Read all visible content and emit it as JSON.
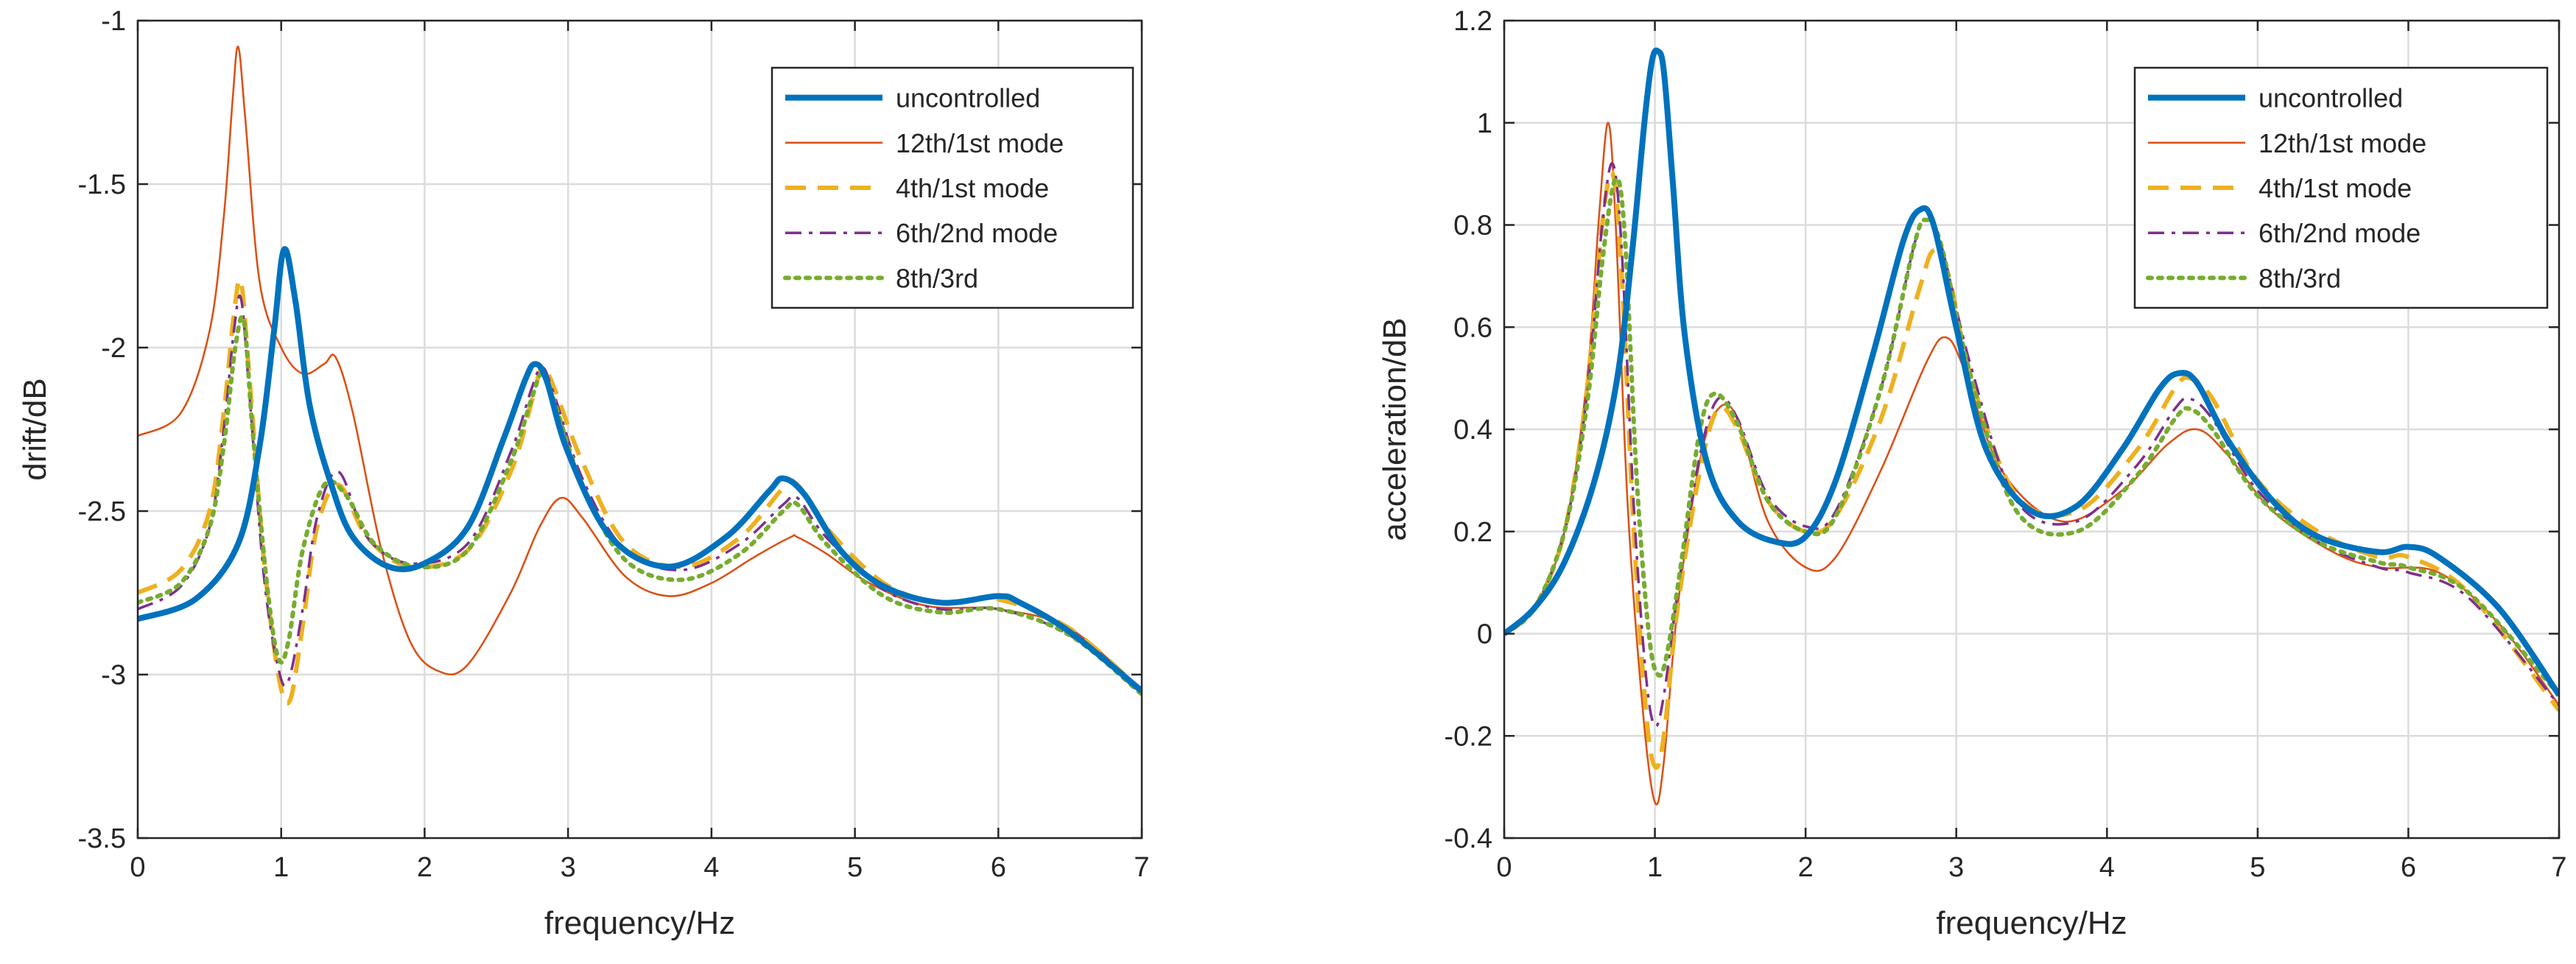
{
  "colors": {
    "uncontrolled": "#0072BD",
    "mode12": "#D95319",
    "mode4": "#EDB120",
    "mode6": "#7E2F8E",
    "mode8": "#77AC30",
    "axis": "#262626",
    "grid": "#DCDCDC"
  },
  "chart_data": [
    {
      "type": "line",
      "title": "",
      "xlabel": "frequency/Hz",
      "ylabel": "drift/dB",
      "xlim": [
        0,
        7
      ],
      "ylim": [
        -3.5,
        -1
      ],
      "xticks": [
        0,
        1,
        2,
        3,
        4,
        5,
        6,
        7
      ],
      "yticks": [
        -3.5,
        -3,
        -2.5,
        -2,
        -1.5,
        -1
      ],
      "xtick_labels": [
        "0",
        "1",
        "2",
        "3",
        "4",
        "5",
        "6",
        "7"
      ],
      "ytick_labels": [
        "-3.5",
        "-3",
        "-2.5",
        "-2",
        "-1.5",
        "-1"
      ],
      "grid": true,
      "legend_position": "top-right",
      "series": [
        {
          "name": "uncontrolled",
          "style": "solid-thick",
          "color_key": "uncontrolled",
          "x": [
            0,
            0.4,
            0.7,
            0.85,
            0.95,
            1.02,
            1.1,
            1.2,
            1.35,
            1.5,
            1.75,
            2.0,
            2.3,
            2.55,
            2.7,
            2.77,
            2.85,
            3.0,
            3.3,
            3.7,
            4.1,
            4.4,
            4.5,
            4.65,
            4.9,
            5.2,
            5.6,
            6.0,
            6.15,
            6.5,
            7.0
          ],
          "y": [
            -2.83,
            -2.77,
            -2.6,
            -2.3,
            -1.95,
            -1.7,
            -1.86,
            -2.18,
            -2.42,
            -2.58,
            -2.67,
            -2.66,
            -2.55,
            -2.28,
            -2.1,
            -2.05,
            -2.1,
            -2.32,
            -2.58,
            -2.67,
            -2.58,
            -2.44,
            -2.4,
            -2.45,
            -2.62,
            -2.73,
            -2.78,
            -2.76,
            -2.78,
            -2.87,
            -3.05
          ]
        },
        {
          "name": "12th/1st mode",
          "style": "solid-thin",
          "color_key": "mode12",
          "x": [
            0,
            0.3,
            0.5,
            0.6,
            0.66,
            0.7,
            0.75,
            0.85,
            1.0,
            1.15,
            1.3,
            1.38,
            1.5,
            1.7,
            1.9,
            2.1,
            2.3,
            2.6,
            2.8,
            2.95,
            3.1,
            3.4,
            3.7,
            4.0,
            4.3,
            4.55,
            4.6,
            4.8,
            5.1,
            5.5,
            6.0,
            6.5,
            7.0
          ],
          "y": [
            -2.27,
            -2.2,
            -1.95,
            -1.6,
            -1.25,
            -1.08,
            -1.3,
            -1.8,
            -2.0,
            -2.08,
            -2.05,
            -2.03,
            -2.2,
            -2.62,
            -2.9,
            -2.99,
            -2.97,
            -2.75,
            -2.55,
            -2.46,
            -2.52,
            -2.7,
            -2.76,
            -2.72,
            -2.64,
            -2.58,
            -2.58,
            -2.63,
            -2.72,
            -2.79,
            -2.8,
            -2.86,
            -3.05
          ]
        },
        {
          "name": "4th/1st mode",
          "style": "dashed",
          "color_key": "mode4",
          "x": [
            0,
            0.3,
            0.5,
            0.6,
            0.67,
            0.72,
            0.78,
            0.88,
            0.98,
            1.06,
            1.15,
            1.25,
            1.4,
            1.6,
            1.9,
            2.3,
            2.6,
            2.75,
            2.82,
            2.9,
            3.1,
            3.4,
            3.8,
            4.2,
            4.5,
            4.6,
            4.8,
            5.2,
            5.6,
            6.0,
            6.5,
            7.0
          ],
          "y": [
            -2.75,
            -2.68,
            -2.5,
            -2.2,
            -1.9,
            -1.8,
            -2.1,
            -2.65,
            -3.0,
            -3.08,
            -2.85,
            -2.55,
            -2.42,
            -2.58,
            -2.67,
            -2.62,
            -2.38,
            -2.16,
            -2.06,
            -2.12,
            -2.35,
            -2.6,
            -2.67,
            -2.58,
            -2.43,
            -2.42,
            -2.55,
            -2.72,
            -2.78,
            -2.77,
            -2.86,
            -3.05
          ]
        },
        {
          "name": "6th/2nd mode",
          "style": "dashdot",
          "color_key": "mode6",
          "x": [
            0,
            0.3,
            0.5,
            0.6,
            0.67,
            0.72,
            0.78,
            0.88,
            0.98,
            1.05,
            1.15,
            1.25,
            1.4,
            1.6,
            1.9,
            2.3,
            2.6,
            2.75,
            2.82,
            2.9,
            3.1,
            3.4,
            3.8,
            4.2,
            4.5,
            4.6,
            4.8,
            5.2,
            5.6,
            6.0,
            6.5,
            7.0
          ],
          "y": [
            -2.8,
            -2.73,
            -2.55,
            -2.25,
            -1.95,
            -1.85,
            -2.15,
            -2.7,
            -2.98,
            -3.02,
            -2.8,
            -2.52,
            -2.38,
            -2.58,
            -2.66,
            -2.6,
            -2.32,
            -2.12,
            -2.06,
            -2.14,
            -2.4,
            -2.62,
            -2.68,
            -2.6,
            -2.48,
            -2.46,
            -2.58,
            -2.74,
            -2.8,
            -2.8,
            -2.88,
            -3.06
          ]
        },
        {
          "name": "8th/3rd",
          "style": "dotted",
          "color_key": "mode8",
          "x": [
            0,
            0.3,
            0.5,
            0.6,
            0.68,
            0.74,
            0.8,
            0.9,
            0.98,
            1.05,
            1.15,
            1.3,
            1.45,
            1.65,
            1.95,
            2.3,
            2.6,
            2.75,
            2.82,
            2.9,
            3.1,
            3.4,
            3.8,
            4.2,
            4.5,
            4.6,
            4.8,
            5.2,
            5.6,
            6.0,
            6.5,
            7.0
          ],
          "y": [
            -2.78,
            -2.72,
            -2.55,
            -2.3,
            -2.0,
            -1.92,
            -2.25,
            -2.72,
            -2.95,
            -2.9,
            -2.62,
            -2.42,
            -2.45,
            -2.6,
            -2.67,
            -2.62,
            -2.35,
            -2.15,
            -2.08,
            -2.16,
            -2.42,
            -2.65,
            -2.71,
            -2.63,
            -2.5,
            -2.48,
            -2.6,
            -2.76,
            -2.81,
            -2.8,
            -2.88,
            -3.06
          ]
        }
      ]
    },
    {
      "type": "line",
      "title": "",
      "xlabel": "frequency/Hz",
      "ylabel": "acceleration/dB",
      "xlim": [
        0,
        7
      ],
      "ylim": [
        -0.4,
        1.2
      ],
      "xticks": [
        0,
        1,
        2,
        3,
        4,
        5,
        6,
        7
      ],
      "yticks": [
        -0.4,
        -0.2,
        0,
        0.2,
        0.4,
        0.6,
        0.8,
        1,
        1.2
      ],
      "xtick_labels": [
        "0",
        "1",
        "2",
        "3",
        "4",
        "5",
        "6",
        "7"
      ],
      "ytick_labels": [
        "-0.4",
        "-0.2",
        "0",
        "0.2",
        "0.4",
        "0.6",
        "0.8",
        "1",
        "1.2"
      ],
      "grid": true,
      "legend_position": "top-right",
      "series": [
        {
          "name": "uncontrolled",
          "style": "solid-thick",
          "color_key": "uncontrolled",
          "x": [
            0,
            0.2,
            0.4,
            0.6,
            0.75,
            0.85,
            0.93,
            0.98,
            1.02,
            1.06,
            1.12,
            1.2,
            1.35,
            1.55,
            1.8,
            2.0,
            2.2,
            2.45,
            2.65,
            2.76,
            2.85,
            3.0,
            3.2,
            3.5,
            3.8,
            4.1,
            4.35,
            4.48,
            4.6,
            4.8,
            5.1,
            5.4,
            5.8,
            6.0,
            6.2,
            6.6,
            7.0
          ],
          "y": [
            0,
            0.05,
            0.14,
            0.3,
            0.5,
            0.75,
            1.0,
            1.12,
            1.14,
            1.1,
            0.88,
            0.58,
            0.33,
            0.22,
            0.18,
            0.19,
            0.3,
            0.55,
            0.77,
            0.83,
            0.8,
            0.6,
            0.36,
            0.24,
            0.25,
            0.36,
            0.48,
            0.51,
            0.49,
            0.38,
            0.26,
            0.19,
            0.16,
            0.17,
            0.15,
            0.05,
            -0.12
          ]
        },
        {
          "name": "12th/1st mode",
          "style": "solid-thin",
          "color_key": "mode12",
          "x": [
            0,
            0.2,
            0.4,
            0.55,
            0.63,
            0.69,
            0.74,
            0.82,
            0.92,
            1.0,
            1.06,
            1.15,
            1.3,
            1.42,
            1.55,
            1.75,
            2.0,
            2.2,
            2.5,
            2.8,
            2.93,
            3.05,
            3.3,
            3.7,
            4.1,
            4.4,
            4.6,
            4.8,
            5.1,
            5.5,
            5.8,
            6.2,
            6.6,
            7.0
          ],
          "y": [
            0,
            0.05,
            0.2,
            0.5,
            0.82,
            1.0,
            0.8,
            0.25,
            -0.15,
            -0.33,
            -0.25,
            0.05,
            0.34,
            0.44,
            0.42,
            0.22,
            0.13,
            0.15,
            0.32,
            0.53,
            0.58,
            0.52,
            0.32,
            0.22,
            0.28,
            0.37,
            0.4,
            0.35,
            0.24,
            0.16,
            0.13,
            0.12,
            0.02,
            -0.14
          ]
        },
        {
          "name": "4th/1st mode",
          "style": "dashed",
          "color_key": "mode4",
          "x": [
            0,
            0.2,
            0.4,
            0.55,
            0.65,
            0.72,
            0.78,
            0.86,
            0.94,
            1.0,
            1.06,
            1.15,
            1.3,
            1.42,
            1.55,
            1.75,
            2.0,
            2.2,
            2.5,
            2.75,
            2.85,
            2.95,
            3.1,
            3.4,
            3.8,
            4.2,
            4.45,
            4.55,
            4.7,
            5.0,
            5.4,
            5.8,
            6.0,
            6.4,
            7.0
          ],
          "y": [
            0,
            0.05,
            0.2,
            0.48,
            0.8,
            0.9,
            0.7,
            0.2,
            -0.15,
            -0.26,
            -0.2,
            0.05,
            0.32,
            0.44,
            0.4,
            0.26,
            0.2,
            0.23,
            0.42,
            0.67,
            0.75,
            0.7,
            0.5,
            0.27,
            0.24,
            0.36,
            0.48,
            0.5,
            0.46,
            0.3,
            0.2,
            0.15,
            0.15,
            0.08,
            -0.15
          ]
        },
        {
          "name": "6th/2nd mode",
          "style": "dashdot",
          "color_key": "mode6",
          "x": [
            0,
            0.2,
            0.4,
            0.55,
            0.65,
            0.72,
            0.78,
            0.86,
            0.94,
            1.0,
            1.06,
            1.15,
            1.3,
            1.42,
            1.55,
            1.75,
            2.0,
            2.2,
            2.5,
            2.72,
            2.8,
            2.9,
            3.1,
            3.4,
            3.8,
            4.2,
            4.45,
            4.55,
            4.7,
            5.0,
            5.4,
            5.8,
            6.0,
            6.4,
            7.0
          ],
          "y": [
            0,
            0.05,
            0.2,
            0.47,
            0.8,
            0.92,
            0.75,
            0.25,
            -0.08,
            -0.18,
            -0.12,
            0.08,
            0.35,
            0.46,
            0.42,
            0.27,
            0.21,
            0.24,
            0.48,
            0.76,
            0.81,
            0.76,
            0.52,
            0.26,
            0.22,
            0.33,
            0.44,
            0.46,
            0.42,
            0.28,
            0.18,
            0.13,
            0.12,
            0.07,
            -0.14
          ]
        },
        {
          "name": "8th/3rd",
          "style": "dotted",
          "color_key": "mode8",
          "x": [
            0,
            0.2,
            0.4,
            0.55,
            0.66,
            0.74,
            0.8,
            0.88,
            0.96,
            1.02,
            1.08,
            1.18,
            1.3,
            1.4,
            1.55,
            1.75,
            2.0,
            2.2,
            2.5,
            2.72,
            2.8,
            2.9,
            3.1,
            3.4,
            3.8,
            4.2,
            4.45,
            4.55,
            4.7,
            5.0,
            5.4,
            5.8,
            6.0,
            6.4,
            7.0
          ],
          "y": [
            0,
            0.05,
            0.2,
            0.45,
            0.75,
            0.89,
            0.78,
            0.3,
            0.0,
            -0.08,
            -0.04,
            0.15,
            0.4,
            0.47,
            0.41,
            0.26,
            0.2,
            0.23,
            0.48,
            0.76,
            0.81,
            0.76,
            0.5,
            0.24,
            0.2,
            0.31,
            0.42,
            0.44,
            0.4,
            0.27,
            0.18,
            0.14,
            0.13,
            0.08,
            -0.12
          ]
        }
      ]
    }
  ]
}
